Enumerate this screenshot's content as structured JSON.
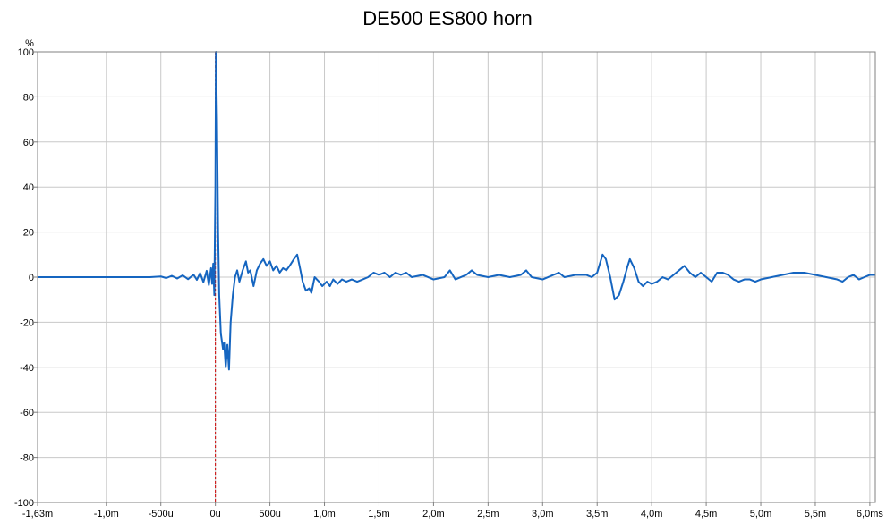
{
  "chart_data": {
    "type": "line",
    "title": "DE500 ES800 horn",
    "ylabel": "%",
    "xlabel": "",
    "xlim": [
      -1.63,
      6.05
    ],
    "ylim": [
      -100,
      100
    ],
    "x_unit": "ms",
    "grid": true,
    "x_ticks": [
      {
        "value": -1.63,
        "label": "-1,63m"
      },
      {
        "value": -1.0,
        "label": "-1,0m"
      },
      {
        "value": -0.5,
        "label": "-500u"
      },
      {
        "value": 0.0,
        "label": "0u"
      },
      {
        "value": 0.5,
        "label": "500u"
      },
      {
        "value": 1.0,
        "label": "1,0m"
      },
      {
        "value": 1.5,
        "label": "1,5m"
      },
      {
        "value": 2.0,
        "label": "2,0m"
      },
      {
        "value": 2.5,
        "label": "2,5m"
      },
      {
        "value": 3.0,
        "label": "3,0m"
      },
      {
        "value": 3.5,
        "label": "3,5m"
      },
      {
        "value": 4.0,
        "label": "4,0m"
      },
      {
        "value": 4.5,
        "label": "4,5m"
      },
      {
        "value": 5.0,
        "label": "5,0m"
      },
      {
        "value": 5.5,
        "label": "5,5m"
      },
      {
        "value": 6.0,
        "label": "6,0ms"
      }
    ],
    "y_ticks": [
      {
        "value": 100,
        "label": "100"
      },
      {
        "value": 80,
        "label": "80"
      },
      {
        "value": 60,
        "label": "60"
      },
      {
        "value": 40,
        "label": "40"
      },
      {
        "value": 20,
        "label": "20"
      },
      {
        "value": 0,
        "label": "0"
      },
      {
        "value": -20,
        "label": "-20"
      },
      {
        "value": -40,
        "label": "-40"
      },
      {
        "value": -60,
        "label": "-60"
      },
      {
        "value": -80,
        "label": "-80"
      },
      {
        "value": -100,
        "label": "-100"
      }
    ],
    "marker_line": {
      "x": 0.0,
      "color": "#cc0000"
    },
    "series": [
      {
        "color": "#1565c0",
        "points": [
          [
            -1.63,
            0
          ],
          [
            -1.2,
            0
          ],
          [
            -0.6,
            0
          ],
          [
            -0.5,
            0.3
          ],
          [
            -0.45,
            -0.4
          ],
          [
            -0.4,
            0.6
          ],
          [
            -0.35,
            -0.6
          ],
          [
            -0.3,
            0.8
          ],
          [
            -0.25,
            -0.9
          ],
          [
            -0.2,
            1.1
          ],
          [
            -0.17,
            -1.2
          ],
          [
            -0.14,
            1.8
          ],
          [
            -0.11,
            -2.2
          ],
          [
            -0.08,
            2.8
          ],
          [
            -0.06,
            -3.5
          ],
          [
            -0.04,
            4
          ],
          [
            -0.03,
            -3
          ],
          [
            -0.02,
            6
          ],
          [
            -0.01,
            -8
          ],
          [
            0.0,
            40
          ],
          [
            0.005,
            100
          ],
          [
            0.015,
            70
          ],
          [
            0.025,
            20
          ],
          [
            0.035,
            -8
          ],
          [
            0.05,
            -25
          ],
          [
            0.07,
            -32
          ],
          [
            0.08,
            -29
          ],
          [
            0.095,
            -40
          ],
          [
            0.11,
            -30
          ],
          [
            0.125,
            -41
          ],
          [
            0.14,
            -20
          ],
          [
            0.16,
            -8
          ],
          [
            0.18,
            0
          ],
          [
            0.2,
            3
          ],
          [
            0.22,
            -2
          ],
          [
            0.25,
            3
          ],
          [
            0.28,
            7
          ],
          [
            0.3,
            2
          ],
          [
            0.32,
            3
          ],
          [
            0.35,
            -4
          ],
          [
            0.38,
            3
          ],
          [
            0.41,
            6
          ],
          [
            0.44,
            8
          ],
          [
            0.47,
            5
          ],
          [
            0.5,
            7
          ],
          [
            0.53,
            3
          ],
          [
            0.56,
            5
          ],
          [
            0.59,
            2
          ],
          [
            0.62,
            4
          ],
          [
            0.65,
            3
          ],
          [
            0.68,
            5
          ],
          [
            0.72,
            8
          ],
          [
            0.75,
            10
          ],
          [
            0.78,
            3
          ],
          [
            0.8,
            -2
          ],
          [
            0.83,
            -6
          ],
          [
            0.86,
            -5
          ],
          [
            0.88,
            -7
          ],
          [
            0.91,
            0
          ],
          [
            0.95,
            -2
          ],
          [
            0.98,
            -4
          ],
          [
            1.02,
            -2
          ],
          [
            1.05,
            -4
          ],
          [
            1.08,
            -1
          ],
          [
            1.12,
            -3
          ],
          [
            1.16,
            -1
          ],
          [
            1.2,
            -2
          ],
          [
            1.25,
            -1
          ],
          [
            1.3,
            -2
          ],
          [
            1.35,
            -1
          ],
          [
            1.4,
            0
          ],
          [
            1.45,
            2
          ],
          [
            1.5,
            1
          ],
          [
            1.55,
            2
          ],
          [
            1.6,
            0
          ],
          [
            1.65,
            2
          ],
          [
            1.7,
            1
          ],
          [
            1.75,
            2
          ],
          [
            1.8,
            0
          ],
          [
            1.9,
            1
          ],
          [
            2.0,
            -1
          ],
          [
            2.1,
            0
          ],
          [
            2.15,
            3
          ],
          [
            2.2,
            -1
          ],
          [
            2.3,
            1
          ],
          [
            2.35,
            3
          ],
          [
            2.4,
            1
          ],
          [
            2.5,
            0
          ],
          [
            2.6,
            1
          ],
          [
            2.7,
            0
          ],
          [
            2.8,
            1
          ],
          [
            2.85,
            3
          ],
          [
            2.9,
            0
          ],
          [
            3.0,
            -1
          ],
          [
            3.1,
            1
          ],
          [
            3.15,
            2
          ],
          [
            3.2,
            0
          ],
          [
            3.3,
            1
          ],
          [
            3.4,
            1
          ],
          [
            3.45,
            0
          ],
          [
            3.5,
            2
          ],
          [
            3.55,
            10
          ],
          [
            3.58,
            8
          ],
          [
            3.62,
            0
          ],
          [
            3.66,
            -10
          ],
          [
            3.7,
            -8
          ],
          [
            3.74,
            -2
          ],
          [
            3.78,
            5
          ],
          [
            3.8,
            8
          ],
          [
            3.84,
            4
          ],
          [
            3.88,
            -2
          ],
          [
            3.92,
            -4
          ],
          [
            3.96,
            -2
          ],
          [
            4.0,
            -3
          ],
          [
            4.05,
            -2
          ],
          [
            4.1,
            0
          ],
          [
            4.15,
            -1
          ],
          [
            4.2,
            1
          ],
          [
            4.25,
            3
          ],
          [
            4.3,
            5
          ],
          [
            4.35,
            2
          ],
          [
            4.4,
            0
          ],
          [
            4.45,
            2
          ],
          [
            4.5,
            0
          ],
          [
            4.55,
            -2
          ],
          [
            4.6,
            2
          ],
          [
            4.65,
            2
          ],
          [
            4.7,
            1
          ],
          [
            4.75,
            -1
          ],
          [
            4.8,
            -2
          ],
          [
            4.85,
            -1
          ],
          [
            4.9,
            -1
          ],
          [
            4.95,
            -2
          ],
          [
            5.0,
            -1
          ],
          [
            5.1,
            0
          ],
          [
            5.2,
            1
          ],
          [
            5.3,
            2
          ],
          [
            5.4,
            2
          ],
          [
            5.5,
            1
          ],
          [
            5.6,
            0
          ],
          [
            5.7,
            -1
          ],
          [
            5.75,
            -2
          ],
          [
            5.8,
            0
          ],
          [
            5.85,
            1
          ],
          [
            5.9,
            -1
          ],
          [
            5.95,
            0
          ],
          [
            6.0,
            1
          ],
          [
            6.05,
            1
          ]
        ]
      }
    ]
  }
}
